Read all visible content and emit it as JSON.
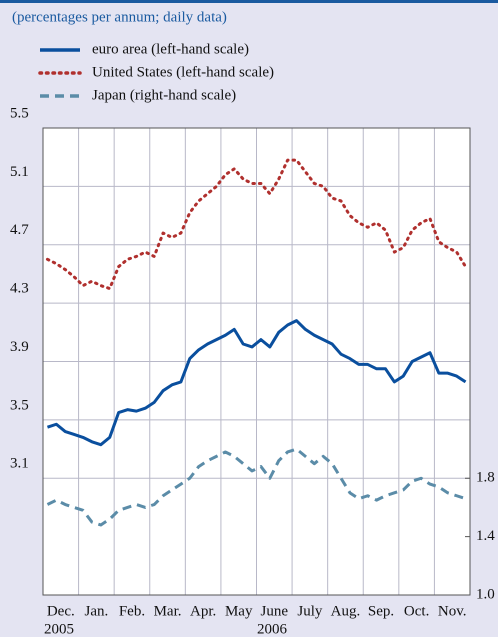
{
  "chart_data": {
    "type": "line",
    "subtitle": "(percentages per annum; daily data)",
    "categories": [
      "Dec.",
      null,
      null,
      null,
      "Jan.",
      null,
      null,
      null,
      "Feb.",
      null,
      null,
      null,
      "Mar.",
      null,
      null,
      null,
      "Apr.",
      null,
      null,
      null,
      "May",
      null,
      null,
      null,
      "June",
      null,
      null,
      null,
      "July",
      null,
      null,
      null,
      "Aug.",
      null,
      null,
      null,
      "Sep.",
      null,
      null,
      null,
      "Oct.",
      null,
      null,
      null,
      "Nov.",
      null,
      null,
      null
    ],
    "years": [
      "2005",
      "2006"
    ],
    "series": [
      {
        "name": "euro area (left-hand scale)",
        "color": "#0a4f9e",
        "style": "solid",
        "values": [
          3.45,
          3.47,
          3.42,
          3.4,
          3.38,
          3.35,
          3.33,
          3.38,
          3.55,
          3.57,
          3.56,
          3.58,
          3.62,
          3.7,
          3.74,
          3.76,
          3.92,
          3.98,
          4.02,
          4.05,
          4.08,
          4.12,
          4.02,
          4.0,
          4.05,
          4.0,
          4.1,
          4.15,
          4.18,
          4.12,
          4.08,
          4.05,
          4.02,
          3.95,
          3.92,
          3.88,
          3.88,
          3.85,
          3.85,
          3.76,
          3.8,
          3.9,
          3.93,
          3.96,
          3.82,
          3.82,
          3.8,
          3.76
        ]
      },
      {
        "name": "United States (left-hand scale)",
        "color": "#b0302e",
        "style": "dotted",
        "values": [
          4.6,
          4.57,
          4.53,
          4.48,
          4.42,
          4.45,
          4.42,
          4.4,
          4.55,
          4.6,
          4.62,
          4.65,
          4.62,
          4.78,
          4.75,
          4.78,
          4.92,
          5.0,
          5.05,
          5.1,
          5.18,
          5.22,
          5.15,
          5.12,
          5.12,
          5.05,
          5.15,
          5.28,
          5.28,
          5.2,
          5.12,
          5.1,
          5.02,
          5.0,
          4.9,
          4.85,
          4.82,
          4.85,
          4.8,
          4.65,
          4.68,
          4.8,
          4.85,
          4.88,
          4.72,
          4.68,
          4.65,
          4.55
        ]
      },
      {
        "name": "Japan (right-hand scale)",
        "color": "#5b8ca8",
        "style": "dashed",
        "axis": "y2",
        "values": [
          1.62,
          1.65,
          1.62,
          1.6,
          1.58,
          1.5,
          1.48,
          1.52,
          1.58,
          1.6,
          1.62,
          1.6,
          1.62,
          1.68,
          1.72,
          1.76,
          1.8,
          1.88,
          1.92,
          1.95,
          1.98,
          1.95,
          1.9,
          1.85,
          1.88,
          1.8,
          1.92,
          1.98,
          2.0,
          1.95,
          1.9,
          1.95,
          1.9,
          1.8,
          1.7,
          1.66,
          1.68,
          1.65,
          1.68,
          1.7,
          1.72,
          1.78,
          1.8,
          1.76,
          1.74,
          1.7,
          1.68,
          1.66
        ]
      }
    ],
    "ylim": [
      2.3,
      5.5
    ],
    "yticks": [
      3.1,
      3.5,
      3.9,
      4.3,
      4.7,
      5.1,
      5.5
    ],
    "y2lim": [
      1.0,
      4.2
    ],
    "y2ticks": [
      {
        "value": 1,
        "label": "1.0"
      },
      1.4,
      1.8
    ],
    "grid": true
  }
}
